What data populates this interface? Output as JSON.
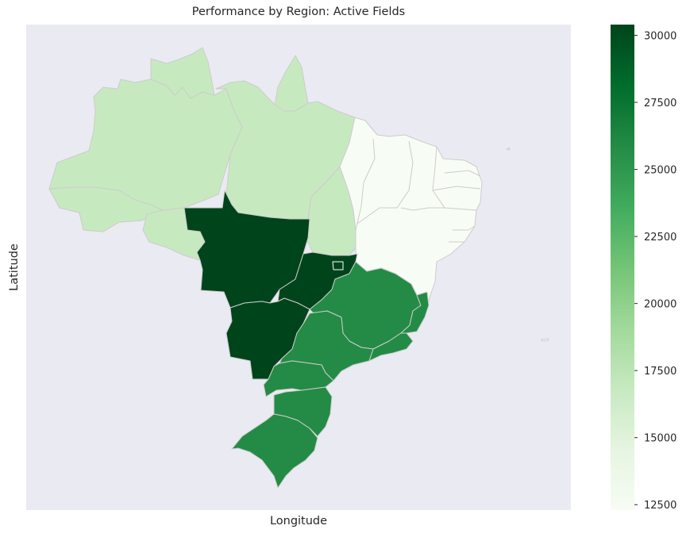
{
  "title": "Performance by Region: Active Fields",
  "xlabel": "Longitude",
  "ylabel": "Latitude",
  "colors": {
    "background": "#eaeaf2",
    "edge": "#cccccc",
    "class_low": "#f7fcf5",
    "class_light": "#c7e9c0",
    "class_mid": "#238b45",
    "class_dark": "#00441b"
  },
  "colorbar": {
    "min": 12300,
    "max": 30400,
    "ticks": [
      {
        "value": 12500,
        "label": "12500"
      },
      {
        "value": 15000,
        "label": "15000"
      },
      {
        "value": 17500,
        "label": "17500"
      },
      {
        "value": 20000,
        "label": "20000"
      },
      {
        "value": 22500,
        "label": "22500"
      },
      {
        "value": 25000,
        "label": "25000"
      },
      {
        "value": 27500,
        "label": "27500"
      },
      {
        "value": 30000,
        "label": "30000"
      }
    ],
    "gradient": [
      "#f7fcf5",
      "#e5f5e0",
      "#c7e9c0",
      "#a1d99b",
      "#74c476",
      "#41ab5d",
      "#238b45",
      "#006d2c",
      "#00441b"
    ]
  },
  "chart_data": {
    "type": "choropleth",
    "region_groups": [
      {
        "group": "north",
        "value": 16000,
        "color": "#c7e9c0"
      },
      {
        "group": "northeast",
        "value": 12300,
        "color": "#f7fcf5"
      },
      {
        "group": "center-west",
        "value": 30400,
        "color": "#00441b"
      },
      {
        "group": "southeast",
        "value": 25000,
        "color": "#238b45"
      },
      {
        "group": "south",
        "value": 25000,
        "color": "#238b45"
      }
    ]
  }
}
